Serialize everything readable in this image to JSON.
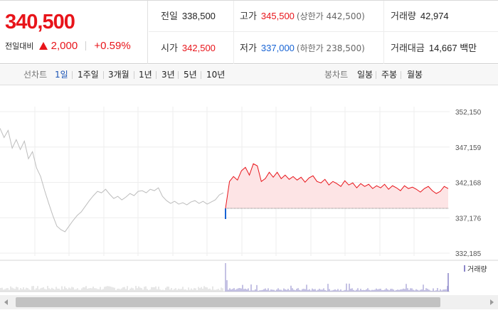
{
  "header": {
    "current_price": "340,500",
    "change_caption": "전일대비",
    "change_amount": "2,000",
    "change_rate": "+0.59%",
    "stats": {
      "prev_close_label": "전일",
      "prev_close_value": "338,500",
      "high_label": "고가",
      "high_value": "345,500",
      "upper_limit_text": "(상한가 442,500)",
      "volume_label": "거래량",
      "volume_value": "42,974",
      "open_label": "시가",
      "open_value": "342,500",
      "low_label": "저가",
      "low_value": "337,000",
      "lower_limit_text": "(하한가 238,500)",
      "amount_label": "거래대금",
      "amount_value": "14,667 백만"
    }
  },
  "toolbar": {
    "line_label": "선차트",
    "line_periods": [
      "1일",
      "1주일",
      "3개월",
      "1년",
      "3년",
      "5년",
      "10년"
    ],
    "active_period": "1일",
    "candle_label": "봉차트",
    "candle_periods": [
      "일봉",
      "주봉",
      "월봉"
    ]
  },
  "colors": {
    "up": "#e8141a",
    "down": "#1763d4",
    "prev_line": "#bdbdbd",
    "volume": "#8b86c9"
  },
  "chart_data": {
    "type": "line",
    "title": "",
    "y_ticks": [
      "352,150",
      "347,159",
      "342,168",
      "337,176",
      "332,185"
    ],
    "ylim": [
      332185,
      352150
    ],
    "baseline": 338500,
    "volume_legend": "거래량",
    "prev_day_series": [
      349800,
      348500,
      349500,
      347000,
      348200,
      346800,
      348000,
      345500,
      346500,
      344200,
      343000,
      341000,
      339200,
      337500,
      336000,
      335500,
      335200,
      336000,
      336800,
      337500,
      338000,
      338800,
      339600,
      340300,
      340900,
      340700,
      341200,
      340500,
      339900,
      340200,
      339700,
      340100,
      340600,
      340300,
      340900,
      341000,
      340700,
      341200,
      341000,
      341400,
      340200,
      339600,
      339200,
      339500,
      339100,
      339300,
      339000,
      339400,
      339600,
      339200,
      339500,
      339100,
      339400,
      339700,
      340400,
      340700
    ],
    "today_series": [
      338500,
      342300,
      343000,
      342500,
      343800,
      344300,
      343200,
      344800,
      344500,
      342300,
      342700,
      343600,
      342900,
      343600,
      342700,
      343200,
      342600,
      343000,
      342500,
      342900,
      342200,
      342800,
      343100,
      342300,
      342100,
      342600,
      341800,
      342300,
      342000,
      341600,
      342400,
      341800,
      342100,
      341400,
      342000,
      341600,
      341900,
      341300,
      341700,
      341400,
      341900,
      341200,
      341700,
      341400,
      341000,
      341700,
      341300,
      341500,
      341200,
      340800,
      341300,
      341600,
      341000,
      340600,
      340900,
      341600,
      341300
    ]
  }
}
